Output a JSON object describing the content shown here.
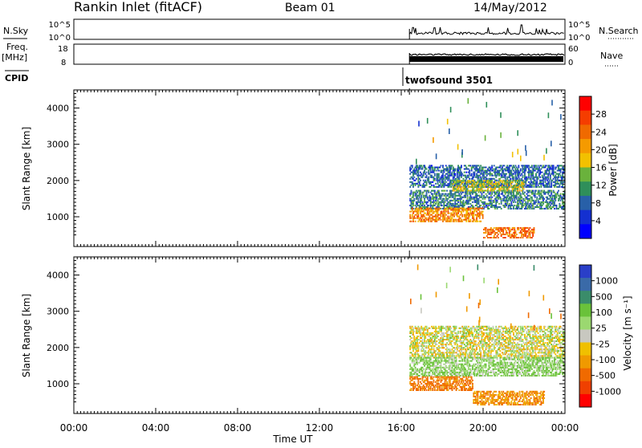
{
  "header": {
    "station": "Rankin Inlet (fitACF)",
    "beam": "Beam 01",
    "date": "14/May/2012"
  },
  "strips": {
    "nsky_label": "N.Sky",
    "nsearch_label": "N.Search",
    "nsky_ticks": [
      "10^5",
      "10^0"
    ],
    "nsearch_ticks": [
      "10^5",
      "10^0"
    ],
    "freq_label": "Freq.",
    "freq_unit": "[MHz]",
    "freq_ticks": [
      "18",
      "8"
    ],
    "nave_label": "Nave",
    "nave_ticks": [
      "60",
      "0"
    ],
    "cpid_label": "CPID",
    "cpid_value": "twofsound 3501"
  },
  "panels": {
    "ylabel": "Slant Range [km]",
    "xlabel": "Time UT",
    "yticks": [
      "4000",
      "3000",
      "2000",
      "1000"
    ],
    "xticks": [
      "00:00",
      "04:00",
      "08:00",
      "12:00",
      "16:00",
      "20:00",
      "00:00"
    ]
  },
  "power_bar": {
    "label": "Power [dB]",
    "ticks": [
      "28",
      "24",
      "20",
      "16",
      "12",
      "8",
      "4"
    ],
    "colors": [
      "#ff0000",
      "#f53d00",
      "#f06a00",
      "#f59a00",
      "#f2c100",
      "#6ab23c",
      "#2f8f5a",
      "#2860a8",
      "#1430d0",
      "#0000ff"
    ]
  },
  "velocity_bar": {
    "label": "Velocity [m s⁻¹]",
    "ticks": [
      "1000",
      "500",
      "100",
      "25",
      "-25",
      "-100",
      "-500",
      "-1000"
    ],
    "colors": [
      "#2a3fc8",
      "#3a6aa8",
      "#3a8c6a",
      "#6ac23a",
      "#9bd870",
      "#c8c8c0",
      "#f0c000",
      "#f09a00",
      "#f06a00",
      "#f04000",
      "#ff0000"
    ]
  },
  "chart_data": [
    {
      "type": "heatmap",
      "name_ref": "power",
      "xlabel": "Time UT",
      "ylabel": "Slant Range [km]",
      "xlim": [
        0,
        24
      ],
      "ylim": [
        180,
        4500
      ],
      "colorbar": "Power [dB]",
      "data_start_hour": 16.4,
      "regions": [
        {
          "t": [
            16.4,
            24
          ],
          "r": [
            1800,
            2400
          ],
          "level": 8
        },
        {
          "t": [
            16.4,
            24
          ],
          "r": [
            1200,
            1700
          ],
          "level": 10
        },
        {
          "t": [
            16.4,
            20
          ],
          "r": [
            850,
            1250
          ],
          "level": 22
        },
        {
          "t": [
            20,
            22.5
          ],
          "r": [
            400,
            700
          ],
          "level": 24
        },
        {
          "t": [
            18.5,
            22
          ],
          "r": [
            1700,
            2000
          ],
          "level": 16
        }
      ]
    },
    {
      "type": "heatmap",
      "name_ref": "velocity",
      "xlabel": "Time UT",
      "ylabel": "Slant Range [km]",
      "xlim": [
        0,
        24
      ],
      "ylim": [
        180,
        4500
      ],
      "colorbar": "Velocity [m s⁻¹]",
      "data_start_hour": 16.4,
      "regions": [
        {
          "t": [
            16.4,
            24
          ],
          "r": [
            1700,
            2600
          ],
          "level": 0
        },
        {
          "t": [
            16.4,
            24
          ],
          "r": [
            1200,
            1700
          ],
          "level": 100
        },
        {
          "t": [
            16.4,
            19.5
          ],
          "r": [
            800,
            1200
          ],
          "level": -300
        },
        {
          "t": [
            19.5,
            23
          ],
          "r": [
            400,
            800
          ],
          "level": -200
        }
      ]
    }
  ]
}
